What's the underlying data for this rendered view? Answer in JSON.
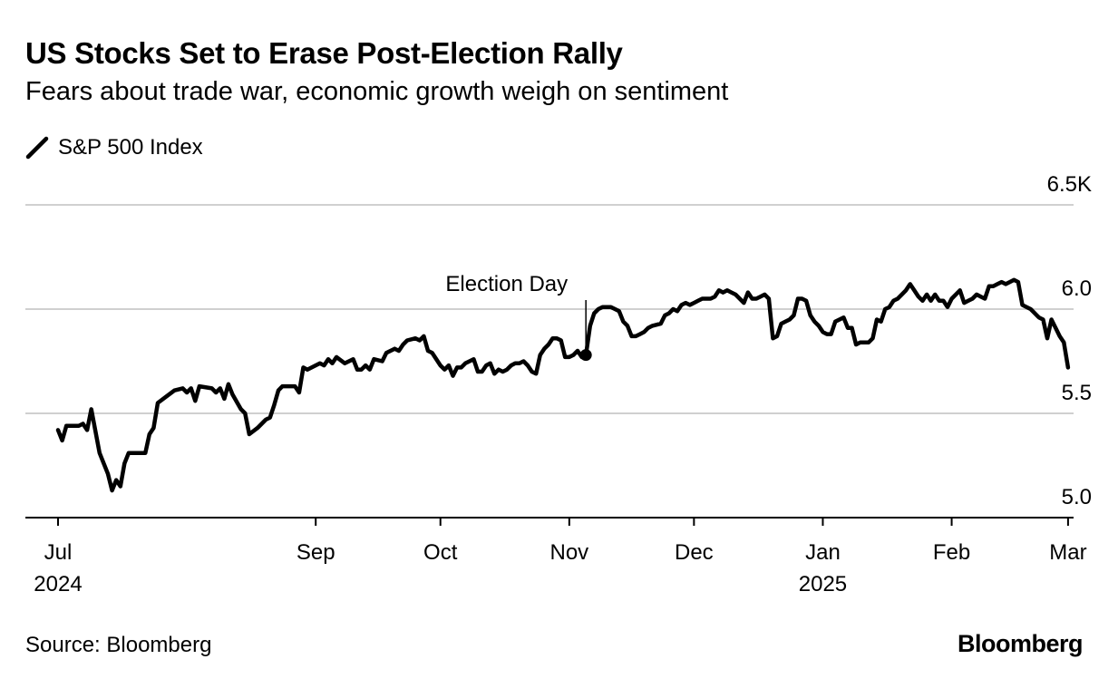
{
  "colors": {
    "line": "#000000",
    "gridline": "#d0d0d0",
    "axis": "#000000",
    "background": "#ffffff"
  },
  "header": {
    "title": "US Stocks Set to Erase Post-Election Rally",
    "subtitle": "Fears about trade war, economic growth weigh on sentiment"
  },
  "legend": {
    "label": "S&P 500 Index",
    "icon": "line-swatch-icon"
  },
  "footer": {
    "source": "Source: Bloomberg",
    "brand": "Bloomberg"
  },
  "chart_data": {
    "type": "line",
    "title": "US Stocks Set to Erase Post-Election Rally",
    "subtitle": "Fears about trade war, economic growth weigh on sentiment",
    "xlabel": "",
    "ylabel": "",
    "y_axis_side": "right",
    "ylim": [
      5.0,
      6.5
    ],
    "grid": true,
    "legend_position": "top-left",
    "y_ticks": [
      {
        "value": 6.5,
        "label": "6.5K"
      },
      {
        "value": 6.0,
        "label": "6.0"
      },
      {
        "value": 5.5,
        "label": "5.5"
      },
      {
        "value": 5.0,
        "label": "5.0"
      }
    ],
    "xlim_days": [
      -10,
      250
    ],
    "x_ticks": [
      {
        "day": 0,
        "label": "Jul",
        "year": "2024"
      },
      {
        "day": 62,
        "label": "Sep",
        "year": ""
      },
      {
        "day": 92,
        "label": "Oct",
        "year": ""
      },
      {
        "day": 123,
        "label": "Nov",
        "year": ""
      },
      {
        "day": 153,
        "label": "Dec",
        "year": ""
      },
      {
        "day": 184,
        "label": "Jan",
        "year": "2025"
      },
      {
        "day": 215,
        "label": "Feb",
        "year": ""
      },
      {
        "day": 243,
        "label": "Mar",
        "year": ""
      }
    ],
    "annotation": {
      "label": "Election Day",
      "day": 127,
      "value": 5.78
    },
    "series": [
      {
        "name": "S&P 500 Index",
        "x_unit": "days since 2024-07-01",
        "points": [
          [
            0,
            5.42
          ],
          [
            1,
            5.37
          ],
          [
            2,
            5.44
          ],
          [
            5,
            5.44
          ],
          [
            6,
            5.45
          ],
          [
            7,
            5.42
          ],
          [
            8,
            5.52
          ],
          [
            10,
            5.31
          ],
          [
            12,
            5.21
          ],
          [
            13,
            5.13
          ],
          [
            14,
            5.18
          ],
          [
            15,
            5.15
          ],
          [
            16,
            5.26
          ],
          [
            17,
            5.31
          ],
          [
            18,
            5.31
          ],
          [
            21,
            5.31
          ],
          [
            22,
            5.4
          ],
          [
            23,
            5.43
          ],
          [
            24,
            5.55
          ],
          [
            26,
            5.58
          ],
          [
            28,
            5.61
          ],
          [
            30,
            5.62
          ],
          [
            31,
            5.6
          ],
          [
            32,
            5.62
          ],
          [
            33,
            5.56
          ],
          [
            34,
            5.63
          ],
          [
            37,
            5.62
          ],
          [
            38,
            5.6
          ],
          [
            39,
            5.62
          ],
          [
            40,
            5.57
          ],
          [
            41,
            5.64
          ],
          [
            42,
            5.59
          ],
          [
            44,
            5.52
          ],
          [
            45,
            5.5
          ],
          [
            46,
            5.4
          ],
          [
            48,
            5.43
          ],
          [
            50,
            5.47
          ],
          [
            51,
            5.48
          ],
          [
            52,
            5.54
          ],
          [
            53,
            5.61
          ],
          [
            54,
            5.63
          ],
          [
            57,
            5.63
          ],
          [
            58,
            5.6
          ],
          [
            59,
            5.72
          ],
          [
            60,
            5.71
          ],
          [
            63,
            5.74
          ],
          [
            64,
            5.73
          ],
          [
            65,
            5.76
          ],
          [
            66,
            5.74
          ],
          [
            67,
            5.77
          ],
          [
            69,
            5.74
          ],
          [
            71,
            5.76
          ],
          [
            72,
            5.71
          ],
          [
            73,
            5.71
          ],
          [
            74,
            5.73
          ],
          [
            75,
            5.71
          ],
          [
            76,
            5.76
          ],
          [
            78,
            5.75
          ],
          [
            79,
            5.79
          ],
          [
            81,
            5.81
          ],
          [
            82,
            5.8
          ],
          [
            83,
            5.83
          ],
          [
            84,
            5.85
          ],
          [
            86,
            5.86
          ],
          [
            87,
            5.85
          ],
          [
            88,
            5.87
          ],
          [
            89,
            5.8
          ],
          [
            90,
            5.79
          ],
          [
            92,
            5.73
          ],
          [
            93,
            5.71
          ],
          [
            94,
            5.73
          ],
          [
            95,
            5.68
          ],
          [
            96,
            5.72
          ],
          [
            97,
            5.72
          ],
          [
            98,
            5.74
          ],
          [
            99,
            5.75
          ],
          [
            100,
            5.76
          ],
          [
            101,
            5.7
          ],
          [
            102,
            5.7
          ],
          [
            103,
            5.73
          ],
          [
            104,
            5.74
          ],
          [
            105,
            5.69
          ],
          [
            106,
            5.71
          ],
          [
            107,
            5.7
          ],
          [
            108,
            5.71
          ],
          [
            109,
            5.73
          ],
          [
            110,
            5.74
          ],
          [
            111,
            5.74
          ],
          [
            112,
            5.75
          ],
          [
            113,
            5.73
          ],
          [
            114,
            5.7
          ],
          [
            115,
            5.69
          ],
          [
            116,
            5.78
          ],
          [
            117,
            5.81
          ],
          [
            118,
            5.83
          ],
          [
            119,
            5.86
          ],
          [
            120,
            5.86
          ],
          [
            121,
            5.85
          ],
          [
            122,
            5.77
          ],
          [
            123,
            5.77
          ],
          [
            124,
            5.78
          ],
          [
            125,
            5.8
          ],
          [
            126,
            5.77
          ],
          [
            127,
            5.78
          ],
          [
            128,
            5.92
          ],
          [
            129,
            5.98
          ],
          [
            130,
            6.0
          ],
          [
            131,
            6.01
          ],
          [
            133,
            6.01
          ],
          [
            134,
            6.0
          ],
          [
            135,
            5.99
          ],
          [
            136,
            5.94
          ],
          [
            137,
            5.92
          ],
          [
            138,
            5.87
          ],
          [
            139,
            5.87
          ],
          [
            140,
            5.88
          ],
          [
            141,
            5.89
          ],
          [
            142,
            5.91
          ],
          [
            143,
            5.92
          ],
          [
            145,
            5.93
          ],
          [
            146,
            5.97
          ],
          [
            147,
            5.98
          ],
          [
            148,
            6.0
          ],
          [
            149,
            5.99
          ],
          [
            150,
            6.02
          ],
          [
            151,
            6.03
          ],
          [
            152,
            6.02
          ],
          [
            153,
            6.03
          ],
          [
            154,
            6.04
          ],
          [
            155,
            6.05
          ],
          [
            157,
            6.05
          ],
          [
            158,
            6.06
          ],
          [
            159,
            6.09
          ],
          [
            160,
            6.08
          ],
          [
            161,
            6.09
          ],
          [
            162,
            6.08
          ],
          [
            163,
            6.07
          ],
          [
            164,
            6.05
          ],
          [
            165,
            6.03
          ],
          [
            166,
            6.08
          ],
          [
            167,
            6.05
          ],
          [
            168,
            6.05
          ],
          [
            169,
            6.06
          ],
          [
            170,
            6.07
          ],
          [
            171,
            6.05
          ],
          [
            172,
            5.86
          ],
          [
            173,
            5.87
          ],
          [
            174,
            5.93
          ],
          [
            175,
            5.94
          ],
          [
            176,
            5.95
          ],
          [
            177,
            5.97
          ],
          [
            178,
            6.05
          ],
          [
            179,
            6.05
          ],
          [
            180,
            6.04
          ],
          [
            181,
            5.97
          ],
          [
            182,
            5.94
          ],
          [
            183,
            5.92
          ],
          [
            184,
            5.89
          ],
          [
            185,
            5.88
          ],
          [
            186,
            5.88
          ],
          [
            187,
            5.94
          ],
          [
            188,
            5.95
          ],
          [
            189,
            5.96
          ],
          [
            190,
            5.91
          ],
          [
            191,
            5.91
          ],
          [
            192,
            5.83
          ],
          [
            193,
            5.84
          ],
          [
            194,
            5.84
          ],
          [
            195,
            5.84
          ],
          [
            196,
            5.86
          ],
          [
            197,
            5.95
          ],
          [
            198,
            5.94
          ],
          [
            199,
            6.0
          ],
          [
            200,
            6.01
          ],
          [
            201,
            6.04
          ],
          [
            202,
            6.05
          ],
          [
            203,
            6.07
          ],
          [
            204,
            6.09
          ],
          [
            205,
            6.12
          ],
          [
            206,
            6.09
          ],
          [
            207,
            6.06
          ],
          [
            208,
            6.04
          ],
          [
            209,
            6.07
          ],
          [
            210,
            6.04
          ],
          [
            211,
            6.07
          ],
          [
            212,
            6.04
          ],
          [
            213,
            6.04
          ],
          [
            214,
            6.01
          ],
          [
            215,
            6.05
          ],
          [
            216,
            6.07
          ],
          [
            217,
            6.09
          ],
          [
            218,
            6.03
          ],
          [
            219,
            6.04
          ],
          [
            220,
            6.05
          ],
          [
            221,
            6.07
          ],
          [
            222,
            6.06
          ],
          [
            223,
            6.05
          ],
          [
            224,
            6.11
          ],
          [
            225,
            6.11
          ],
          [
            226,
            6.12
          ],
          [
            227,
            6.13
          ],
          [
            228,
            6.12
          ],
          [
            229,
            6.13
          ],
          [
            230,
            6.14
          ],
          [
            231,
            6.13
          ],
          [
            232,
            6.02
          ],
          [
            233,
            6.01
          ],
          [
            234,
            6.0
          ],
          [
            235,
            5.98
          ],
          [
            236,
            5.96
          ],
          [
            237,
            5.95
          ],
          [
            238,
            5.86
          ],
          [
            239,
            5.95
          ],
          [
            240,
            5.91
          ],
          [
            241,
            5.87
          ],
          [
            242,
            5.84
          ],
          [
            243,
            5.72
          ]
        ]
      }
    ]
  }
}
